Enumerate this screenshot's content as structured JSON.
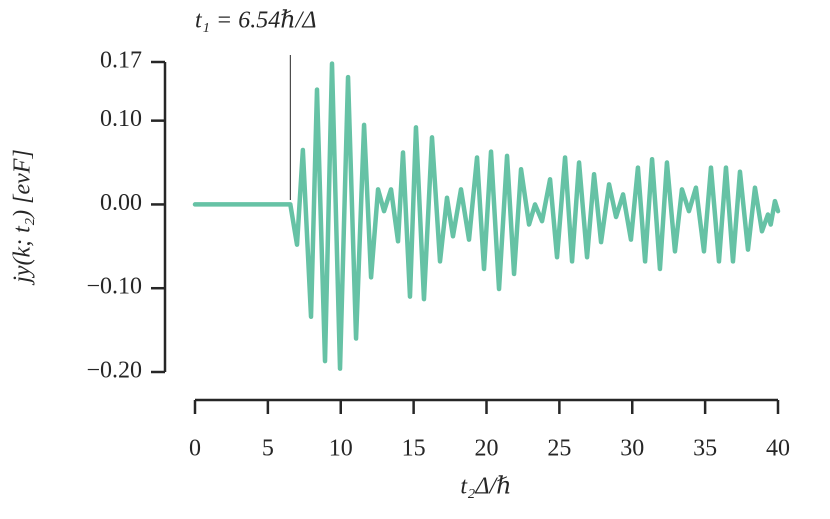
{
  "chart_data": {
    "type": "line",
    "annotation": "t₁ = 6.54ℏ/Δ",
    "annotation_x": 6.54,
    "xlabel": "t₂Δ/ℏ",
    "ylabel": "jy(k; t₂) [evF]",
    "xlim": [
      0,
      40
    ],
    "xticks": [
      0,
      5,
      10,
      15,
      20,
      25,
      30,
      35,
      40
    ],
    "ylim": [
      -0.2,
      0.17
    ],
    "yticks": [
      {
        "value": -0.2,
        "label": "−0.20"
      },
      {
        "value": -0.1,
        "label": "−0.10"
      },
      {
        "value": 0,
        "label": "0.00"
      },
      {
        "value": 0.1,
        "label": "0.10"
      },
      0.17
    ],
    "color": "#66c2a5",
    "x": [
      0,
      6.54,
      7.0,
      7.4,
      7.96,
      8.37,
      8.92,
      9.4,
      9.95,
      10.5,
      11.05,
      11.6,
      12.08,
      12.56,
      12.97,
      13.45,
      13.93,
      14.27,
      14.75,
      15.16,
      15.71,
      16.26,
      16.81,
      17.29,
      17.7,
      18.25,
      18.8,
      19.35,
      19.83,
      20.31,
      20.86,
      21.41,
      21.89,
      22.37,
      22.92,
      23.33,
      23.81,
      24.36,
      24.84,
      25.39,
      25.87,
      26.35,
      26.9,
      27.38,
      27.86,
      28.41,
      28.89,
      29.37,
      29.91,
      30.39,
      30.88,
      31.36,
      31.9,
      32.38,
      32.93,
      33.41,
      33.89,
      34.37,
      34.92,
      35.4,
      35.95,
      36.43,
      36.91,
      37.39,
      37.94,
      38.42,
      38.9,
      39.31,
      39.5,
      39.79,
      40.0
    ],
    "values": [
      0,
      0,
      -0.048,
      0.065,
      -0.134,
      0.137,
      -0.187,
      0.168,
      -0.196,
      0.152,
      -0.16,
      0.095,
      -0.087,
      0.018,
      -0.008,
      0.018,
      -0.044,
      0.062,
      -0.11,
      0.092,
      -0.113,
      0.08,
      -0.068,
      0.008,
      -0.038,
      0.018,
      -0.042,
      0.056,
      -0.077,
      0.063,
      -0.101,
      0.058,
      -0.083,
      0.042,
      -0.024,
      0.0,
      -0.02,
      0.03,
      -0.063,
      0.056,
      -0.068,
      0.05,
      -0.063,
      0.036,
      -0.045,
      0.024,
      -0.015,
      0.012,
      -0.042,
      0.044,
      -0.068,
      0.054,
      -0.077,
      0.05,
      -0.056,
      0.018,
      -0.008,
      0.02,
      -0.056,
      0.044,
      -0.068,
      0.044,
      -0.068,
      0.039,
      -0.054,
      0.02,
      -0.032,
      -0.012,
      -0.024,
      0.004,
      -0.008
    ]
  }
}
